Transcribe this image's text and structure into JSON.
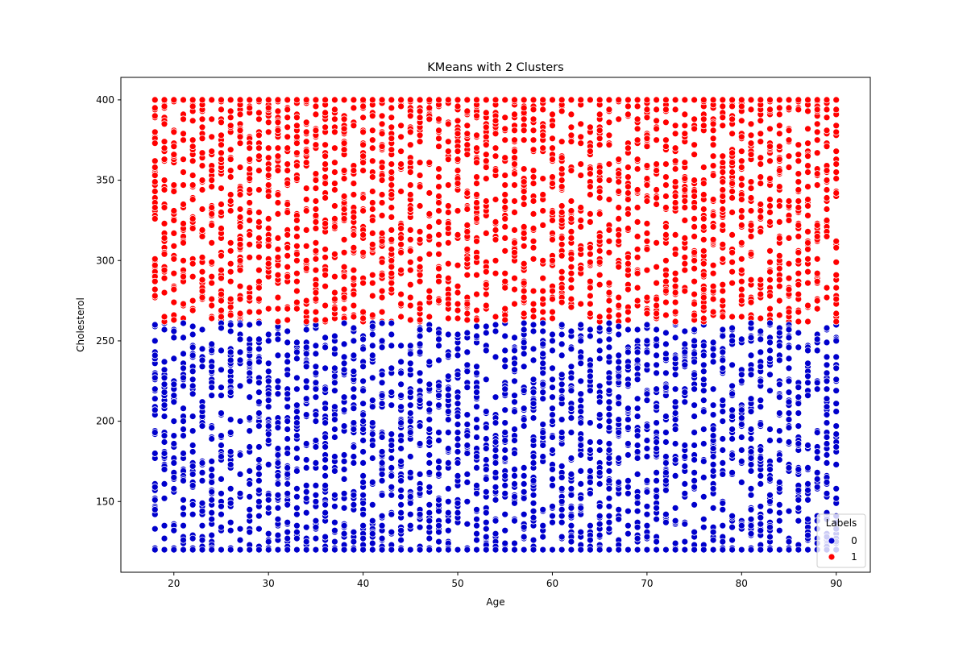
{
  "chart_data": {
    "type": "scatter",
    "title": "KMeans with 2 Clusters",
    "xlabel": "Age",
    "ylabel": "Cholesterol",
    "xlim": [
      14.4,
      93.6
    ],
    "ylim": [
      106,
      414
    ],
    "xticks": [
      20,
      30,
      40,
      50,
      60,
      70,
      80,
      90
    ],
    "yticks": [
      150,
      200,
      250,
      300,
      350,
      400
    ],
    "x_domain": [
      18,
      90
    ],
    "y_domain": [
      120,
      400
    ],
    "cluster_boundary_y": 262,
    "grid": false,
    "legend": {
      "title": "Labels",
      "placement": "lower right",
      "entries": [
        {
          "label": "0",
          "color": "#0000cc"
        },
        {
          "label": "1",
          "color": "#ff0000"
        }
      ]
    },
    "series": [
      {
        "label": "0",
        "color": "#0000cc",
        "y_range": [
          120,
          262
        ]
      },
      {
        "label": "1",
        "color": "#ff0000",
        "y_range": [
          262,
          400
        ]
      }
    ]
  }
}
